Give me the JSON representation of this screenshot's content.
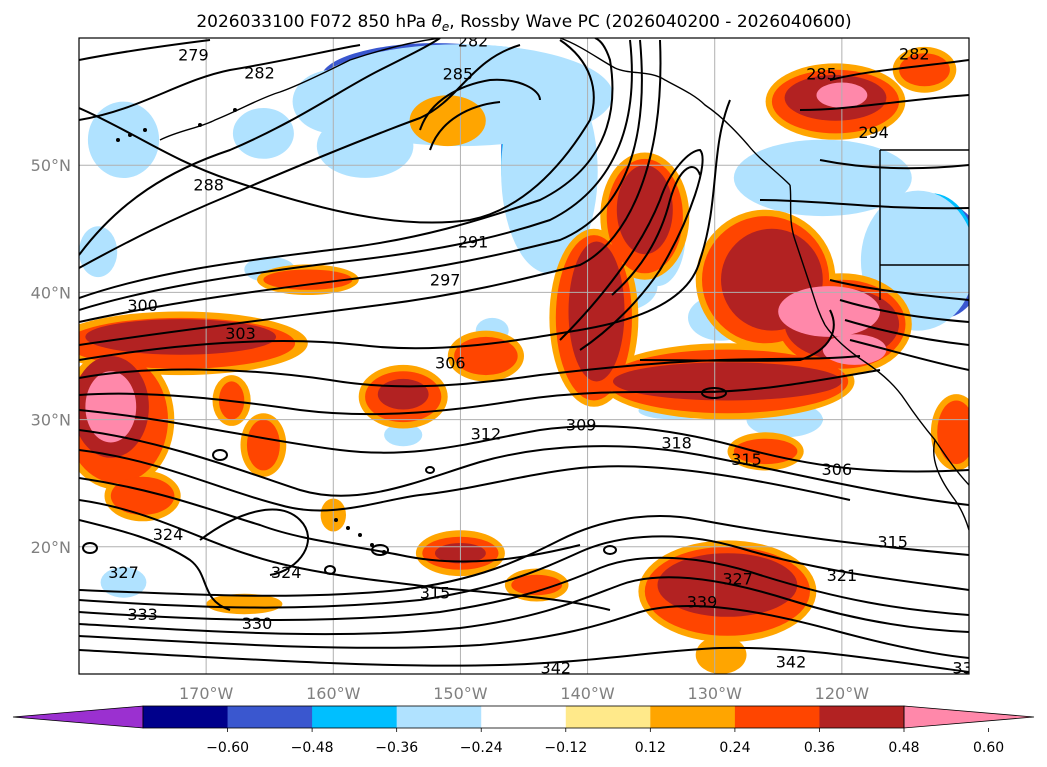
{
  "title_main": "2026033100 F072 850 hPa ",
  "title_theta": "θ",
  "title_sub": "e",
  "title_tail": ", Rossby Wave PC (2026040200 - 2026040600)",
  "map": {
    "lat_labels": [
      "50°N",
      "40°N",
      "30°N",
      "20°N"
    ],
    "lon_labels": [
      "170°W",
      "160°W",
      "150°W",
      "140°W",
      "130°W",
      "120°W"
    ],
    "colors": {
      "contour": "#000000",
      "coast": "#000000",
      "grid": "#b0b0b0"
    }
  },
  "contour_labels": [
    {
      "text": "279",
      "lon": -171.0,
      "lat": 58.7
    },
    {
      "text": "282",
      "lon": -165.8,
      "lat": 57.3
    },
    {
      "text": "282",
      "lon": -149.0,
      "lat": 59.8
    },
    {
      "text": "285",
      "lon": -150.2,
      "lat": 57.2
    },
    {
      "text": "282",
      "lon": -114.3,
      "lat": 58.8
    },
    {
      "text": "285",
      "lon": -121.6,
      "lat": 57.2
    },
    {
      "text": "294",
      "lon": -117.5,
      "lat": 52.6
    },
    {
      "text": "288",
      "lon": -169.8,
      "lat": 48.5
    },
    {
      "text": "291",
      "lon": -149.0,
      "lat": 44.0
    },
    {
      "text": "297",
      "lon": -151.2,
      "lat": 41.0
    },
    {
      "text": "300",
      "lon": -175.0,
      "lat": 39.0
    },
    {
      "text": "303",
      "lon": -167.3,
      "lat": 36.8
    },
    {
      "text": "306",
      "lon": -150.8,
      "lat": 34.5
    },
    {
      "text": "309",
      "lon": -140.5,
      "lat": 29.6
    },
    {
      "text": "312",
      "lon": -148.0,
      "lat": 28.9
    },
    {
      "text": "318",
      "lon": -133.0,
      "lat": 28.2
    },
    {
      "text": "315",
      "lon": -127.5,
      "lat": 26.9
    },
    {
      "text": "306",
      "lon": -120.4,
      "lat": 26.1
    },
    {
      "text": "324",
      "lon": -173.0,
      "lat": 21.0
    },
    {
      "text": "327",
      "lon": -176.5,
      "lat": 18.0
    },
    {
      "text": "324",
      "lon": -163.7,
      "lat": 18.0
    },
    {
      "text": "315",
      "lon": -152.0,
      "lat": 16.4
    },
    {
      "text": "327",
      "lon": -128.2,
      "lat": 17.5
    },
    {
      "text": "321",
      "lon": -120.0,
      "lat": 17.8
    },
    {
      "text": "339",
      "lon": -131.0,
      "lat": 15.7
    },
    {
      "text": "315",
      "lon": -116.0,
      "lat": 20.4
    },
    {
      "text": "333",
      "lon": -175.0,
      "lat": 14.7
    },
    {
      "text": "330",
      "lon": -166.0,
      "lat": 14.0
    },
    {
      "text": "342",
      "lon": -142.5,
      "lat": 10.5
    },
    {
      "text": "342",
      "lon": -124.0,
      "lat": 11.0
    },
    {
      "text": "33",
      "lon": -110.5,
      "lat": 10.5
    }
  ],
  "shading": [
    {
      "cls": 1,
      "lon": -150.8,
      "lat": 56.5,
      "rx": 6.5,
      "ry": 2.3
    },
    {
      "cls": 1,
      "lon": -144.2,
      "lat": 52.0,
      "rx": 2.0,
      "ry": 5.5
    },
    {
      "cls": 1,
      "lon": -121.0,
      "lat": 49.7,
      "rx": 2.5,
      "ry": 1.1
    },
    {
      "cls": 1,
      "lon": -111.0,
      "lat": 41.5,
      "rx": 2.2,
      "ry": 2.3
    },
    {
      "cls": 2,
      "lon": -152.0,
      "lat": 56.8,
      "rx": 9.0,
      "ry": 2.8
    },
    {
      "cls": 2,
      "lon": -144.0,
      "lat": 51.0,
      "rx": 2.8,
      "ry": 6.5
    },
    {
      "cls": 2,
      "lon": -121.0,
      "lat": 49.6,
      "rx": 4.2,
      "ry": 1.8
    },
    {
      "cls": 2,
      "lon": -112.0,
      "lat": 42.5,
      "rx": 3.2,
      "ry": 4.5
    },
    {
      "cls": 2,
      "lon": -158.0,
      "lat": 51.0,
      "rx": 2.0,
      "ry": 1.1
    },
    {
      "cls": 2,
      "lon": -134.8,
      "lat": 44.8,
      "rx": 1.0,
      "ry": 2.5
    },
    {
      "cls": 3,
      "lon": -150.0,
      "lat": 56.0,
      "rx": 11.0,
      "ry": 3.5
    },
    {
      "cls": 3,
      "lon": -143.5,
      "lat": 50.0,
      "rx": 3.3,
      "ry": 7.5
    },
    {
      "cls": 3,
      "lon": -121.5,
      "lat": 49.5,
      "rx": 6.0,
      "ry": 2.4
    },
    {
      "cls": 3,
      "lon": -113.0,
      "lat": 42.8,
      "rx": 3.6,
      "ry": 5.0
    },
    {
      "cls": 3,
      "lon": -160.0,
      "lat": 55.0,
      "rx": 2.6,
      "ry": 2.0
    },
    {
      "cls": 3,
      "lon": -157.5,
      "lat": 51.5,
      "rx": 3.2,
      "ry": 2.0
    },
    {
      "cls": 3,
      "lon": -165.5,
      "lat": 52.5,
      "rx": 1.8,
      "ry": 1.5
    },
    {
      "cls": 3,
      "lon": -176.5,
      "lat": 52.0,
      "rx": 2.0,
      "ry": 2.5
    },
    {
      "cls": 3,
      "lon": -134.5,
      "lat": 44.5,
      "rx": 1.6,
      "ry": 3.5
    },
    {
      "cls": 3,
      "lon": -129.5,
      "lat": 38.0,
      "rx": 2.0,
      "ry": 1.3
    },
    {
      "cls": 3,
      "lon": -124.0,
      "lat": 30.0,
      "rx": 2.5,
      "ry": 1.0
    },
    {
      "cls": 3,
      "lon": -137.5,
      "lat": 40.5,
      "rx": 2.5,
      "ry": 1.5
    },
    {
      "cls": 3,
      "lon": -176.5,
      "lat": 17.2,
      "rx": 1.2,
      "ry": 0.8
    },
    {
      "cls": 4,
      "lon": -150.0,
      "lat": 55.5,
      "rx": 12.0,
      "ry": 4.0
    },
    {
      "cls": 4,
      "lon": -143.0,
      "lat": 49.5,
      "rx": 3.8,
      "ry": 8.0
    },
    {
      "cls": 4,
      "lon": -121.5,
      "lat": 49.0,
      "rx": 7.0,
      "ry": 3.0
    },
    {
      "cls": 4,
      "lon": -114.0,
      "lat": 42.5,
      "rx": 4.5,
      "ry": 5.5
    },
    {
      "cls": 4,
      "lon": -160.0,
      "lat": 55.0,
      "rx": 3.2,
      "ry": 2.5
    },
    {
      "cls": 4,
      "lon": -157.5,
      "lat": 51.5,
      "rx": 3.8,
      "ry": 2.5
    },
    {
      "cls": 4,
      "lon": -165.5,
      "lat": 52.5,
      "rx": 2.4,
      "ry": 2.0
    },
    {
      "cls": 4,
      "lon": -176.5,
      "lat": 52.0,
      "rx": 2.8,
      "ry": 3.0
    },
    {
      "cls": 4,
      "lon": -134.5,
      "lat": 44.5,
      "rx": 2.2,
      "ry": 4.0
    },
    {
      "cls": 4,
      "lon": -129.5,
      "lat": 38.0,
      "rx": 2.6,
      "ry": 1.8
    },
    {
      "cls": 4,
      "lon": -124.5,
      "lat": 30.0,
      "rx": 3.0,
      "ry": 1.4
    },
    {
      "cls": 4,
      "lon": -137.5,
      "lat": 40.5,
      "rx": 3.0,
      "ry": 2.0
    },
    {
      "cls": 4,
      "lon": -147.5,
      "lat": 37.0,
      "rx": 1.3,
      "ry": 1.0
    },
    {
      "cls": 4,
      "lon": -154.5,
      "lat": 28.8,
      "rx": 1.5,
      "ry": 0.9
    },
    {
      "cls": 4,
      "lon": -178.5,
      "lat": 43.2,
      "rx": 1.5,
      "ry": 2.0
    },
    {
      "cls": 4,
      "lon": -176.5,
      "lat": 17.2,
      "rx": 1.8,
      "ry": 1.2
    },
    {
      "cls": 4,
      "lon": -165.0,
      "lat": 41.8,
      "rx": 2.0,
      "ry": 1.0
    },
    {
      "cls": 4,
      "lon": -133.0,
      "lat": 30.7,
      "rx": 3.0,
      "ry": 0.7
    },
    {
      "cls": 7,
      "lon": -172.0,
      "lat": 36.0,
      "rx": 10.0,
      "ry": 2.5
    },
    {
      "cls": 7,
      "lon": -177.0,
      "lat": 30.0,
      "rx": 4.5,
      "ry": 5.5
    },
    {
      "cls": 7,
      "lon": -154.5,
      "lat": 31.8,
      "rx": 3.5,
      "ry": 2.5
    },
    {
      "cls": 7,
      "lon": -148.0,
      "lat": 35.0,
      "rx": 3.0,
      "ry": 2.0
    },
    {
      "cls": 7,
      "lon": -139.5,
      "lat": 38.0,
      "rx": 3.5,
      "ry": 7.0
    },
    {
      "cls": 7,
      "lon": -135.5,
      "lat": 46.0,
      "rx": 3.5,
      "ry": 5.0
    },
    {
      "cls": 7,
      "lon": -129.0,
      "lat": 33.0,
      "rx": 10.0,
      "ry": 3.0
    },
    {
      "cls": 7,
      "lon": -126.0,
      "lat": 41.0,
      "rx": 5.5,
      "ry": 5.5
    },
    {
      "cls": 7,
      "lon": -120.0,
      "lat": 37.5,
      "rx": 5.5,
      "ry": 4.0
    },
    {
      "cls": 7,
      "lon": -120.5,
      "lat": 55.0,
      "rx": 5.5,
      "ry": 3.0
    },
    {
      "cls": 7,
      "lon": -113.5,
      "lat": 57.5,
      "rx": 2.5,
      "ry": 1.8
    },
    {
      "cls": 7,
      "lon": -129.0,
      "lat": 16.5,
      "rx": 7.0,
      "ry": 4.0
    },
    {
      "cls": 7,
      "lon": -150.0,
      "lat": 19.5,
      "rx": 3.5,
      "ry": 1.8
    },
    {
      "cls": 7,
      "lon": -162.0,
      "lat": 41.0,
      "rx": 4.0,
      "ry": 1.2
    },
    {
      "cls": 7,
      "lon": -175.0,
      "lat": 24.0,
      "rx": 3.0,
      "ry": 2.0
    },
    {
      "cls": 7,
      "lon": -168.0,
      "lat": 31.5,
      "rx": 1.5,
      "ry": 2.0
    },
    {
      "cls": 7,
      "lon": -165.5,
      "lat": 28.0,
      "rx": 1.8,
      "ry": 2.5
    },
    {
      "cls": 7,
      "lon": -111.0,
      "lat": 29.0,
      "rx": 2.0,
      "ry": 3.0
    },
    {
      "cls": 7,
      "lon": -126.0,
      "lat": 27.5,
      "rx": 3.0,
      "ry": 1.5
    },
    {
      "cls": 7,
      "lon": -144.0,
      "lat": 17.0,
      "rx": 2.5,
      "ry": 1.3
    },
    {
      "cls": 7,
      "lon": -151.0,
      "lat": 53.5,
      "rx": 3.0,
      "ry": 2.0
    },
    {
      "cls": 7,
      "lon": -160.0,
      "lat": 22.5,
      "rx": 1.0,
      "ry": 1.3
    },
    {
      "cls": 7,
      "lon": -167.0,
      "lat": 15.5,
      "rx": 3.0,
      "ry": 0.8
    },
    {
      "cls": 7,
      "lon": -129.5,
      "lat": 11.5,
      "rx": 2.0,
      "ry": 1.5
    },
    {
      "cls": 8,
      "lon": -172.0,
      "lat": 36.0,
      "rx": 9.0,
      "ry": 2.0
    },
    {
      "cls": 8,
      "lon": -177.0,
      "lat": 30.0,
      "rx": 4.0,
      "ry": 5.0
    },
    {
      "cls": 8,
      "lon": -154.5,
      "lat": 31.8,
      "rx": 3.0,
      "ry": 2.0
    },
    {
      "cls": 8,
      "lon": -148.0,
      "lat": 35.0,
      "rx": 2.5,
      "ry": 1.5
    },
    {
      "cls": 8,
      "lon": -139.5,
      "lat": 38.0,
      "rx": 3.0,
      "ry": 6.5
    },
    {
      "cls": 8,
      "lon": -135.5,
      "lat": 46.0,
      "rx": 3.0,
      "ry": 4.5
    },
    {
      "cls": 8,
      "lon": -129.0,
      "lat": 33.0,
      "rx": 9.5,
      "ry": 2.5
    },
    {
      "cls": 8,
      "lon": -126.0,
      "lat": 41.0,
      "rx": 5.0,
      "ry": 5.0
    },
    {
      "cls": 8,
      "lon": -120.0,
      "lat": 37.5,
      "rx": 5.0,
      "ry": 3.5
    },
    {
      "cls": 8,
      "lon": -120.5,
      "lat": 55.0,
      "rx": 5.0,
      "ry": 2.5
    },
    {
      "cls": 8,
      "lon": -113.5,
      "lat": 57.5,
      "rx": 2.0,
      "ry": 1.3
    },
    {
      "cls": 8,
      "lon": -129.0,
      "lat": 16.5,
      "rx": 6.5,
      "ry": 3.5
    },
    {
      "cls": 8,
      "lon": -150.0,
      "lat": 19.5,
      "rx": 3.0,
      "ry": 1.3
    },
    {
      "cls": 8,
      "lon": -162.0,
      "lat": 41.0,
      "rx": 3.5,
      "ry": 0.8
    },
    {
      "cls": 8,
      "lon": -175.0,
      "lat": 24.0,
      "rx": 2.5,
      "ry": 1.5
    },
    {
      "cls": 8,
      "lon": -168.0,
      "lat": 31.5,
      "rx": 1.0,
      "ry": 1.5
    },
    {
      "cls": 8,
      "lon": -165.5,
      "lat": 28.0,
      "rx": 1.3,
      "ry": 2.0
    },
    {
      "cls": 8,
      "lon": -111.0,
      "lat": 29.0,
      "rx": 1.5,
      "ry": 2.5
    },
    {
      "cls": 8,
      "lon": -126.0,
      "lat": 27.5,
      "rx": 2.5,
      "ry": 1.0
    },
    {
      "cls": 8,
      "lon": -144.0,
      "lat": 17.0,
      "rx": 2.0,
      "ry": 0.8
    },
    {
      "cls": 9,
      "lon": -172.0,
      "lat": 36.5,
      "rx": 7.5,
      "ry": 1.4
    },
    {
      "cls": 9,
      "lon": -177.5,
      "lat": 31.0,
      "rx": 3.0,
      "ry": 4.0
    },
    {
      "cls": 9,
      "lon": -154.5,
      "lat": 32.0,
      "rx": 2.0,
      "ry": 1.2
    },
    {
      "cls": 9,
      "lon": -139.3,
      "lat": 38.5,
      "rx": 2.2,
      "ry": 5.5
    },
    {
      "cls": 9,
      "lon": -135.5,
      "lat": 46.5,
      "rx": 2.2,
      "ry": 3.5
    },
    {
      "cls": 9,
      "lon": -129.0,
      "lat": 33.0,
      "rx": 9.0,
      "ry": 1.5
    },
    {
      "cls": 9,
      "lon": -125.5,
      "lat": 41.0,
      "rx": 4.0,
      "ry": 4.0
    },
    {
      "cls": 9,
      "lon": -120.0,
      "lat": 37.5,
      "rx": 4.5,
      "ry": 2.8
    },
    {
      "cls": 9,
      "lon": -120.5,
      "lat": 55.3,
      "rx": 4.0,
      "ry": 1.8
    },
    {
      "cls": 9,
      "lon": -129.0,
      "lat": 17.0,
      "rx": 5.5,
      "ry": 2.5
    },
    {
      "cls": 9,
      "lon": -150.0,
      "lat": 19.5,
      "rx": 2.0,
      "ry": 0.8
    },
    {
      "cls": 10,
      "lon": -177.5,
      "lat": 31.0,
      "rx": 2.0,
      "ry": 2.8
    },
    {
      "cls": 10,
      "lon": -121.0,
      "lat": 38.5,
      "rx": 4.0,
      "ry": 2.0
    },
    {
      "cls": 10,
      "lon": -119.0,
      "lat": 35.5,
      "rx": 2.5,
      "ry": 1.2
    },
    {
      "cls": 10,
      "lon": -120.0,
      "lat": 55.5,
      "rx": 2.0,
      "ry": 1.0
    }
  ],
  "colorbar": {
    "levels": [
      "−0.60",
      "−0.48",
      "−0.36",
      "−0.24",
      "−0.12",
      "0.12",
      "0.24",
      "0.36",
      "0.48",
      "0.60"
    ],
    "colors": [
      "#9b30d0",
      "#00008b",
      "#3a57cf",
      "#00bfff",
      "#b0e2ff",
      "#ffffff",
      "#ffe98a",
      "#ffa500",
      "#ff4500",
      "#b22222",
      "#ff88aa"
    ]
  }
}
